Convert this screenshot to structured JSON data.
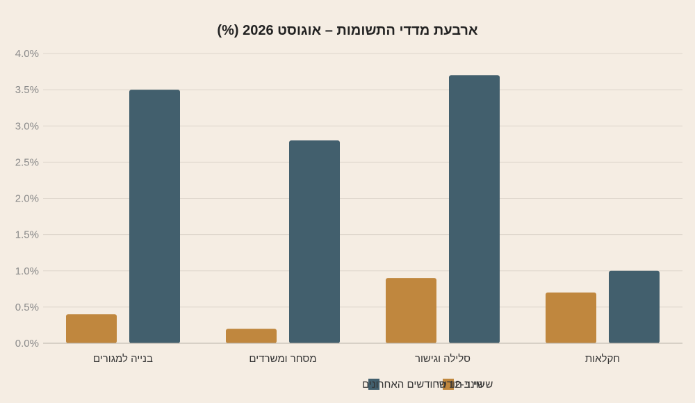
{
  "chart_data": {
    "type": "bar",
    "title": "ארבעת מדדי התשומות – אוגוסט 2026 (%)",
    "categories": [
      "בנייה למגורים",
      "מסחר ומשרדים",
      "סלילה וגישור",
      "חקלאות"
    ],
    "series": [
      {
        "name": "שינוי חודשי",
        "color": "#c0873e",
        "values": [
          0.4,
          0.2,
          0.9,
          0.7
        ]
      },
      {
        "name": "שינוי ב-12 החודשים האחרונים",
        "color": "#425f6d",
        "values": [
          3.5,
          2.8,
          3.7,
          1.0
        ]
      }
    ],
    "ylim": [
      0,
      4.0
    ],
    "yticks": [
      "0.0%",
      "0.5%",
      "1.0%",
      "1.5%",
      "2.0%",
      "2.5%",
      "3.0%",
      "3.5%",
      "4.0%"
    ],
    "grid": true,
    "legend_position": "bottom-center"
  }
}
